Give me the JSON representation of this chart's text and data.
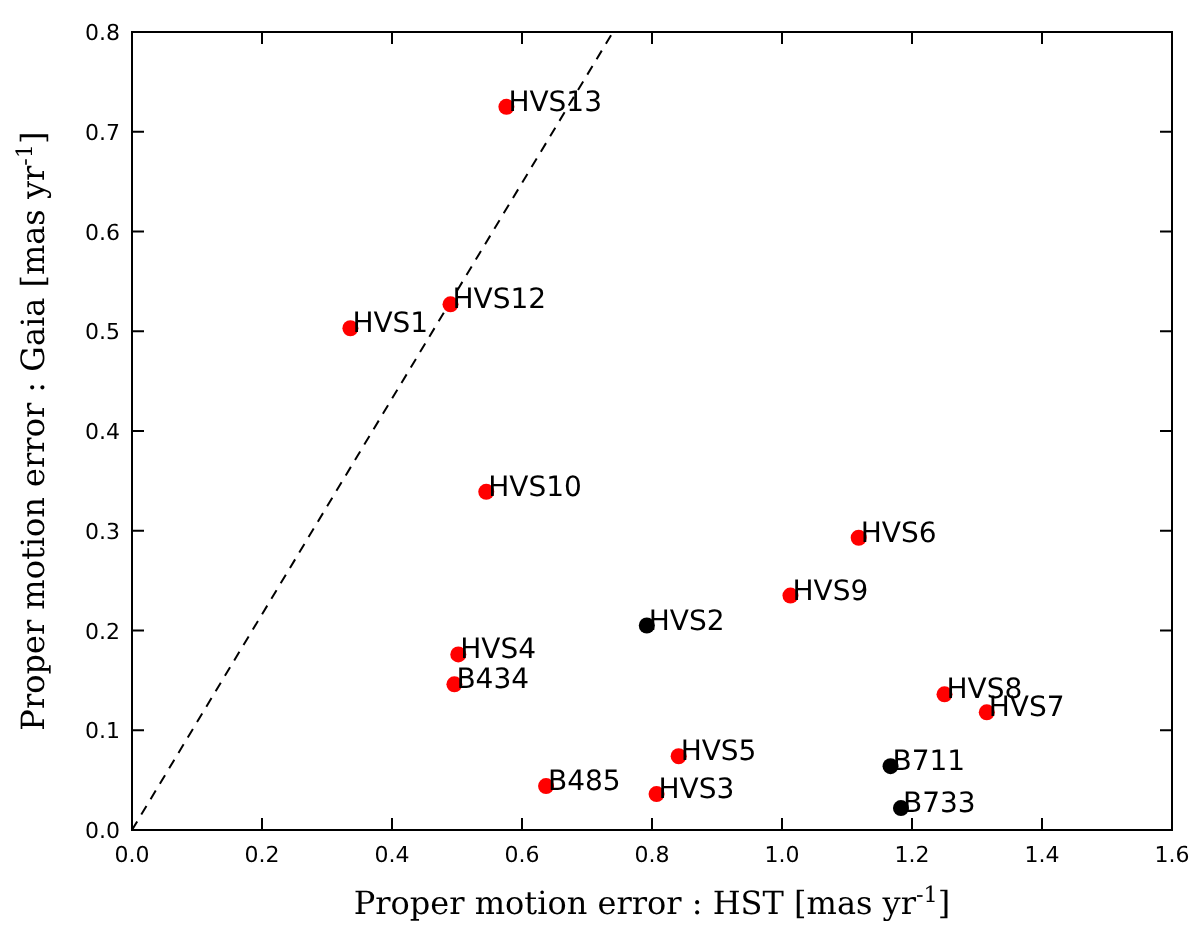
{
  "chart_data": {
    "type": "scatter",
    "xlabel": "Proper motion error : HST [mas yr$^{-1}$]",
    "ylabel": "Proper motion error : Gaia [mas yr$^{-1}$]",
    "xlim": [
      0,
      1.6
    ],
    "ylim": [
      0,
      0.8
    ],
    "xticks": [
      {
        "value": 0,
        "label": "0.0"
      },
      {
        "value": 0.2,
        "label": "0.2"
      },
      {
        "value": 0.4,
        "label": "0.4"
      },
      {
        "value": 0.6,
        "label": "0.6"
      },
      {
        "value": 0.8,
        "label": "0.8"
      },
      {
        "value": 1,
        "label": "1.0"
      },
      {
        "value": 1.2,
        "label": "1.2"
      },
      {
        "value": 1.4,
        "label": "1.4"
      },
      {
        "value": 1.6,
        "label": "1.6"
      }
    ],
    "yticks": [
      {
        "value": 0,
        "label": "0.0"
      },
      {
        "value": 0.1,
        "label": "0.1"
      },
      {
        "value": 0.2,
        "label": "0.2"
      },
      {
        "value": 0.3,
        "label": "0.3"
      },
      {
        "value": 0.4,
        "label": "0.4"
      },
      {
        "value": 0.5,
        "label": "0.5"
      },
      {
        "value": 0.6,
        "label": "0.6"
      },
      {
        "value": 0.7,
        "label": "0.7"
      },
      {
        "value": 0.8,
        "label": "0.8"
      }
    ],
    "grid": false,
    "marker": "circle",
    "series": [
      {
        "type": "line",
        "color": "#000000",
        "line_style": "dashed",
        "marker": "none",
        "x": [
          0,
          0.74
        ],
        "values": [
          0,
          0.8
        ]
      },
      {
        "color": "#ff0000",
        "x": [
          0.576,
          0.49,
          0.336,
          0.545,
          1.118,
          1.013,
          0.502,
          0.496,
          1.25,
          1.315,
          0.841,
          0.637,
          0.807
        ],
        "values": [
          0.725,
          0.527,
          0.503,
          0.339,
          0.293,
          0.235,
          0.176,
          0.146,
          0.136,
          0.118,
          0.074,
          0.044,
          0.036
        ]
      },
      {
        "color": "#000000",
        "x": [
          0.792,
          1.167,
          1.183
        ],
        "values": [
          0.205,
          0.064,
          0.022
        ]
      }
    ],
    "annotations": [
      {
        "text": "HVS13",
        "x": 0.576,
        "y": 0.725
      },
      {
        "text": "HVS12",
        "x": 0.49,
        "y": 0.527
      },
      {
        "text": "HVS1",
        "x": 0.336,
        "y": 0.503
      },
      {
        "text": "HVS10",
        "x": 0.545,
        "y": 0.339
      },
      {
        "text": "HVS6",
        "x": 1.118,
        "y": 0.293
      },
      {
        "text": "HVS9",
        "x": 1.013,
        "y": 0.235
      },
      {
        "text": "HVS4",
        "x": 0.502,
        "y": 0.176
      },
      {
        "text": "B434",
        "x": 0.496,
        "y": 0.146
      },
      {
        "text": "HVS8",
        "x": 1.25,
        "y": 0.136
      },
      {
        "text": "HVS7",
        "x": 1.315,
        "y": 0.118
      },
      {
        "text": "HVS5",
        "x": 0.841,
        "y": 0.074
      },
      {
        "text": "B485",
        "x": 0.637,
        "y": 0.044
      },
      {
        "text": "HVS3",
        "x": 0.807,
        "y": 0.036
      },
      {
        "text": "HVS2",
        "x": 0.792,
        "y": 0.205
      },
      {
        "text": "B711",
        "x": 1.167,
        "y": 0.064
      },
      {
        "text": "B733",
        "x": 1.183,
        "y": 0.022
      }
    ]
  }
}
